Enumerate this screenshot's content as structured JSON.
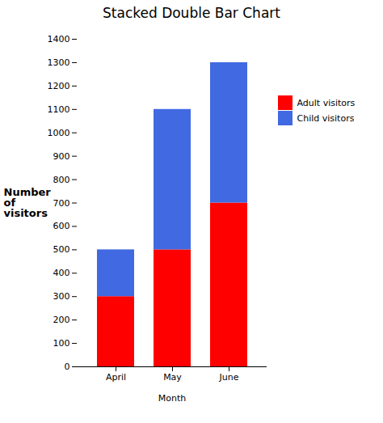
{
  "chart_data": {
    "type": "bar",
    "title": "Stacked Double Bar Chart",
    "xlabel": "Month",
    "ylabel": "Number\nof\nvisitors",
    "categories": [
      "April",
      "May",
      "June"
    ],
    "series": [
      {
        "name": "Adult visitors",
        "color": "#FF0000",
        "values": [
          300,
          500,
          700
        ]
      },
      {
        "name": "Child visitors",
        "color": "#4169E1",
        "values": [
          200,
          600,
          600
        ]
      }
    ],
    "ylim": [
      0,
      1400
    ],
    "yticks": [
      0,
      100,
      200,
      300,
      400,
      500,
      600,
      700,
      800,
      900,
      1000,
      1100,
      1200,
      1300,
      1400
    ],
    "stacked": true,
    "grid": false,
    "legend": "right"
  }
}
